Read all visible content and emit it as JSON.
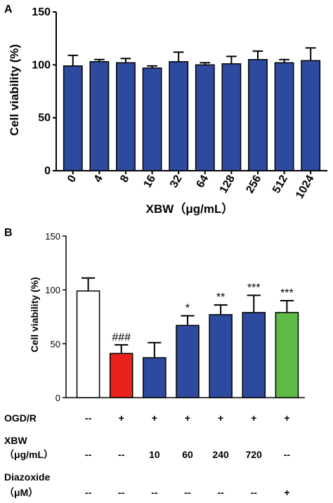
{
  "chart_data": [
    {
      "panel_label": "A",
      "type": "bar",
      "categories": [
        "0",
        "4",
        "8",
        "16",
        "32",
        "64",
        "128",
        "256",
        "512",
        "1024"
      ],
      "values": [
        99,
        103,
        102,
        97,
        103,
        100,
        101,
        105,
        102,
        104
      ],
      "errors": [
        10,
        2,
        4,
        2,
        9,
        2,
        7,
        8,
        3,
        12
      ],
      "bar_color": "#2E4A9E",
      "xlabel": "XBW（μg/mL）",
      "ylabel": "Cell viability (%)",
      "ylim": [
        0,
        150
      ],
      "yticks": [
        "0",
        "50",
        "100",
        "150"
      ],
      "grid": false
    },
    {
      "panel_label": "B",
      "type": "bar",
      "values": [
        99,
        41,
        37,
        67,
        77,
        79,
        79
      ],
      "errors": [
        12,
        8,
        14,
        9,
        9,
        16,
        11
      ],
      "bar_colors": [
        "#FFFFFF",
        "#E8211D",
        "#2E4A9E",
        "#2E4A9E",
        "#2E4A9E",
        "#2E4A9E",
        "#5DBB46"
      ],
      "significance": [
        "",
        "###",
        "",
        "*",
        "**",
        "***",
        "***"
      ],
      "ylabel": "Cell viability (%)",
      "ylim": [
        0,
        150
      ],
      "yticks": [
        "0",
        "50",
        "100",
        "150"
      ],
      "grid": false,
      "conditions": [
        {
          "label": "OGD/R",
          "values": [
            "--",
            "+",
            "+",
            "+",
            "+",
            "+",
            "+"
          ]
        },
        {
          "label": "XBW",
          "label_line2": "（μg/mL）",
          "values": [
            "--",
            "--",
            "10",
            "60",
            "240",
            "720",
            "--"
          ]
        },
        {
          "label": "Diazoxide",
          "label_line2": "（μM）",
          "values": [
            "--",
            "--",
            "--",
            "--",
            "--",
            "--",
            "+"
          ]
        }
      ]
    }
  ]
}
